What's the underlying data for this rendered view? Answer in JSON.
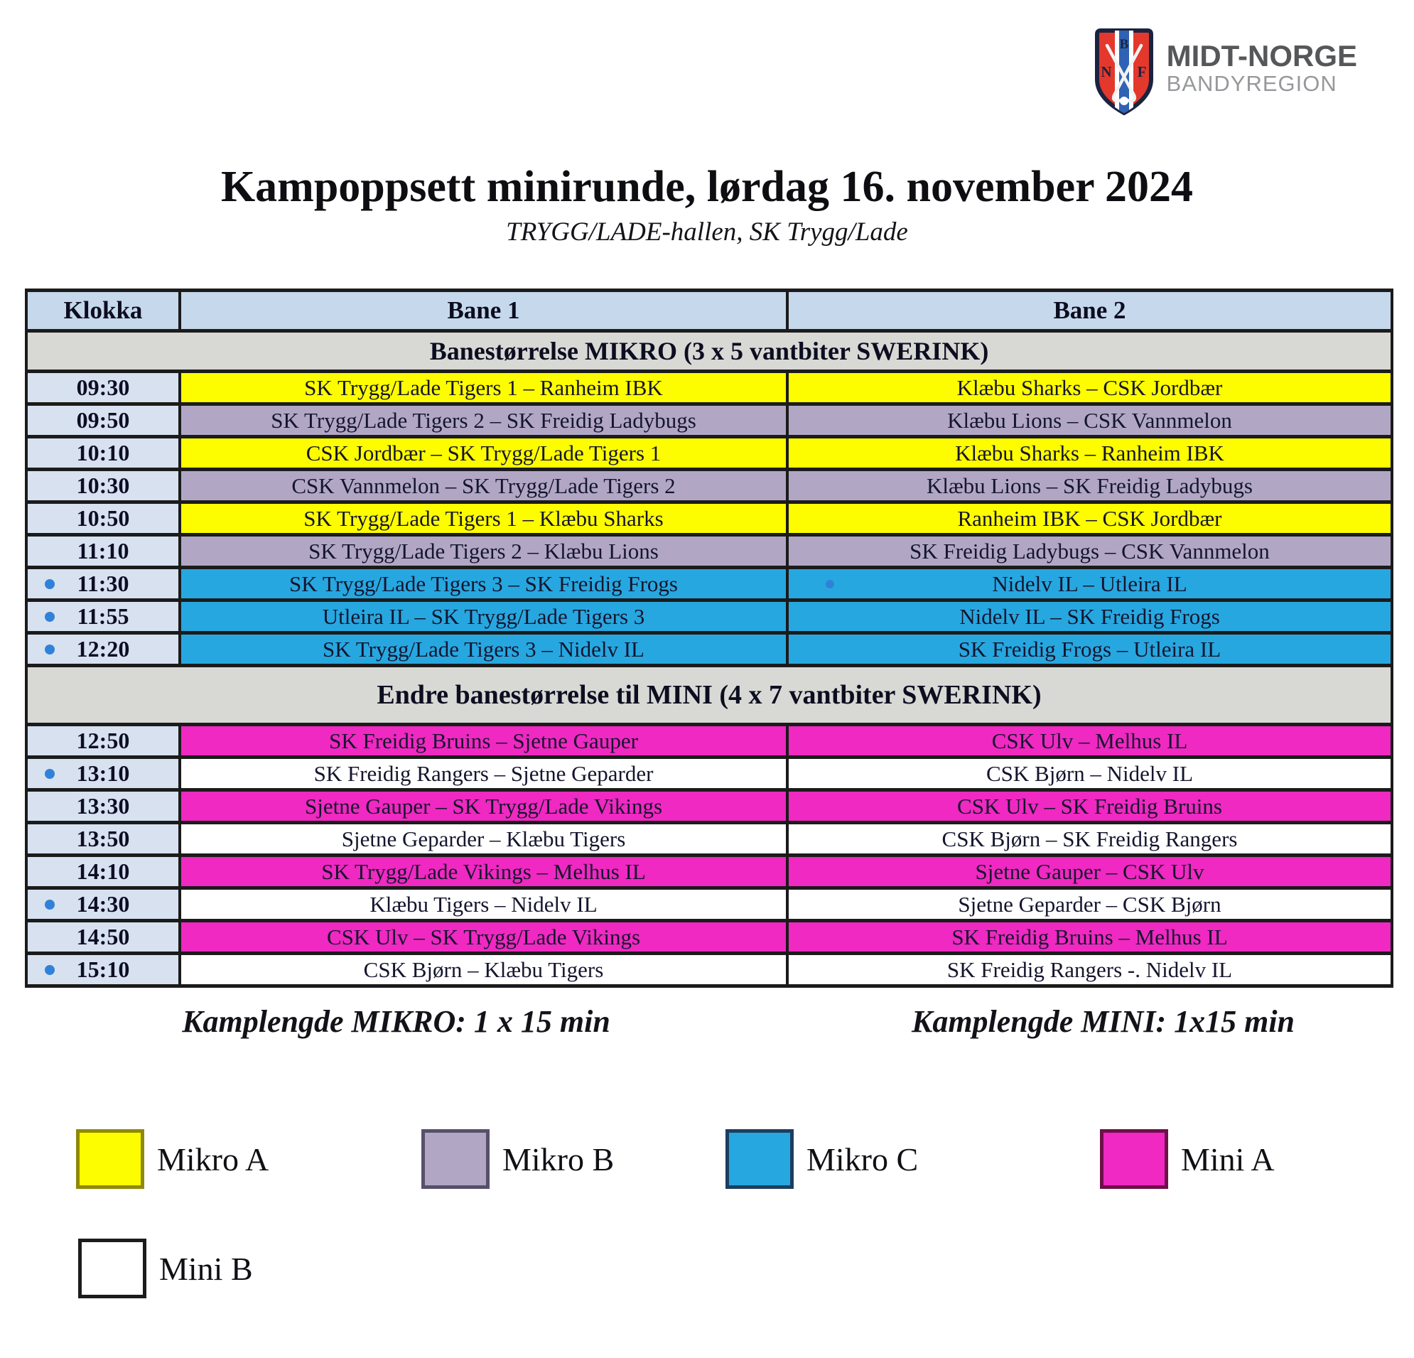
{
  "logo": {
    "org_name": "MIDT-NORGE",
    "org_sub": "BANDYREGION",
    "shield_letters": {
      "n": "N",
      "b": "B",
      "f": "F"
    }
  },
  "header": {
    "title": "Kampoppsett minirunde, lørdag 16. november 2024",
    "subtitle": "TRYGG/LADE-hallen, SK Trygg/Lade"
  },
  "table": {
    "columns": [
      "Klokka",
      "Bane 1",
      "Bane 2"
    ],
    "sections": [
      {
        "header": "Banestørrelse MIKRO (3 x 5 vantbiter SWERINK)",
        "rows": [
          {
            "time": "09:30",
            "bullet": false,
            "category": "mikro-a",
            "bane1": "SK Trygg/Lade Tigers 1 – Ranheim IBK",
            "bane2": "Klæbu Sharks – CSK Jordbær",
            "bane2_bullet": false
          },
          {
            "time": "09:50",
            "bullet": false,
            "category": "mikro-b",
            "bane1": "SK Trygg/Lade Tigers 2 – SK Freidig Ladybugs",
            "bane2": "Klæbu Lions – CSK Vannmelon",
            "bane2_bullet": false
          },
          {
            "time": "10:10",
            "bullet": false,
            "category": "mikro-a",
            "bane1": "CSK Jordbær – SK Trygg/Lade Tigers 1",
            "bane2": "Klæbu Sharks – Ranheim IBK",
            "bane2_bullet": false
          },
          {
            "time": "10:30",
            "bullet": false,
            "category": "mikro-b",
            "bane1": "CSK Vannmelon – SK Trygg/Lade Tigers 2",
            "bane2": "Klæbu Lions – SK Freidig Ladybugs",
            "bane2_bullet": false
          },
          {
            "time": "10:50",
            "bullet": false,
            "category": "mikro-a",
            "bane1": "SK Trygg/Lade Tigers 1 – Klæbu Sharks",
            "bane2": "Ranheim IBK – CSK Jordbær",
            "bane2_bullet": false
          },
          {
            "time": "11:10",
            "bullet": false,
            "category": "mikro-b",
            "bane1": "SK Trygg/Lade Tigers 2 – Klæbu Lions",
            "bane2": "SK Freidig Ladybugs – CSK Vannmelon",
            "bane2_bullet": false
          },
          {
            "time": "11:30",
            "bullet": true,
            "category": "mikro-c",
            "bane1": "SK Trygg/Lade Tigers 3 – SK Freidig Frogs",
            "bane2": "Nidelv IL – Utleira IL",
            "bane2_bullet": true
          },
          {
            "time": "11:55",
            "bullet": true,
            "category": "mikro-c",
            "bane1": "Utleira IL – SK Trygg/Lade Tigers 3",
            "bane2": "Nidelv IL – SK Freidig Frogs",
            "bane2_bullet": false
          },
          {
            "time": "12:20",
            "bullet": true,
            "category": "mikro-c",
            "bane1": "SK Trygg/Lade Tigers 3 – Nidelv IL",
            "bane2": "SK Freidig Frogs – Utleira IL",
            "bane2_bullet": false
          }
        ]
      },
      {
        "header": "Endre banestørrelse til MINI (4 x 7 vantbiter SWERINK)",
        "rows": [
          {
            "time": "12:50",
            "bullet": false,
            "category": "mini-a",
            "bane1": "SK Freidig Bruins – Sjetne Gauper",
            "bane2": "CSK Ulv – Melhus IL",
            "bane2_bullet": false
          },
          {
            "time": "13:10",
            "bullet": true,
            "category": "mini-b",
            "bane1": "SK Freidig Rangers – Sjetne Geparder",
            "bane2": "CSK Bjørn – Nidelv IL",
            "bane2_bullet": false
          },
          {
            "time": "13:30",
            "bullet": false,
            "category": "mini-a",
            "bane1": "Sjetne Gauper – SK Trygg/Lade Vikings",
            "bane2": "CSK Ulv – SK Freidig Bruins",
            "bane2_bullet": false
          },
          {
            "time": "13:50",
            "bullet": false,
            "category": "mini-b",
            "bane1": "Sjetne Geparder – Klæbu Tigers",
            "bane2": "CSK Bjørn – SK Freidig Rangers",
            "bane2_bullet": false
          },
          {
            "time": "14:10",
            "bullet": false,
            "category": "mini-a",
            "bane1": "SK Trygg/Lade Vikings – Melhus IL",
            "bane2": "Sjetne Gauper – CSK Ulv",
            "bane2_bullet": false
          },
          {
            "time": "14:30",
            "bullet": true,
            "category": "mini-b",
            "bane1": "Klæbu Tigers – Nidelv IL",
            "bane2": "Sjetne Geparder – CSK Bjørn",
            "bane2_bullet": false
          },
          {
            "time": "14:50",
            "bullet": false,
            "category": "mini-a",
            "bane1": "CSK Ulv – SK Trygg/Lade Vikings",
            "bane2": "SK Freidig Bruins – Melhus IL",
            "bane2_bullet": false
          },
          {
            "time": "15:10",
            "bullet": true,
            "category": "mini-b",
            "bane1": "CSK Bjørn – Klæbu Tigers",
            "bane2": "SK Freidig Rangers -. Nidelv IL",
            "bane2_bullet": false
          }
        ]
      }
    ]
  },
  "footnotes": {
    "mikro": "Kamplengde MIKRO: 1 x 15 min",
    "mini": "Kamplengde MINI: 1x15 min"
  },
  "colors": {
    "mikro-a": "#fdfd00",
    "mikro-b": "#b1a7c5",
    "mikro-c": "#27a7e0",
    "mini-a": "#ef29c1",
    "mini-b": "#ffffff",
    "header_blue": "#c6d8ec",
    "time_blue": "#d7e1f0",
    "section_gray": "#d8d8d5",
    "bullet_blue": "#2f82d8"
  },
  "legend": {
    "items": [
      {
        "label": "Mikro A",
        "fill": "#fdfd00",
        "border": "#8f8a06"
      },
      {
        "label": "Mikro B",
        "fill": "#b1a7c5",
        "border": "#57506b"
      },
      {
        "label": "Mikro C",
        "fill": "#27a7e0",
        "border": "#1d3e5e"
      },
      {
        "label": "Mini A",
        "fill": "#ef29c1",
        "border": "#6e1049"
      },
      {
        "label": "Mini B",
        "fill": "#ffffff",
        "border": "#1c1c1c"
      }
    ]
  }
}
